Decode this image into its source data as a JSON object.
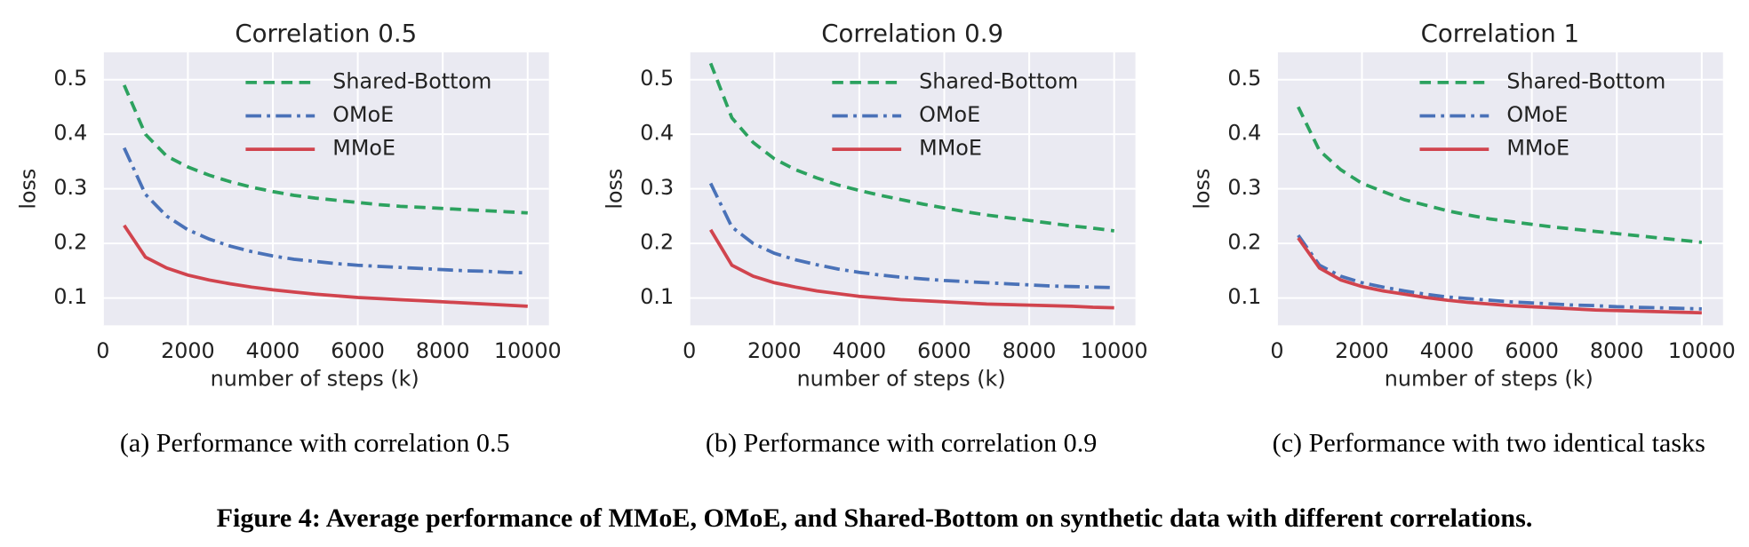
{
  "chart_data": [
    {
      "type": "line",
      "title": "Correlation 0.5",
      "x_label": "number of steps (k)",
      "y_label": "loss",
      "subcaption": "(a) Performance with correlation 0.5",
      "x": [
        500,
        1000,
        1500,
        2000,
        2500,
        3000,
        3500,
        4000,
        4500,
        5000,
        5500,
        6000,
        6500,
        7000,
        7500,
        8000,
        8500,
        9000,
        9500,
        10000
      ],
      "series": [
        {
          "name": "Shared-Bottom",
          "color": "#2ca25f",
          "linestyle": "dashed",
          "values": [
            0.49,
            0.4,
            0.36,
            0.34,
            0.325,
            0.313,
            0.303,
            0.295,
            0.288,
            0.283,
            0.279,
            0.275,
            0.271,
            0.268,
            0.266,
            0.264,
            0.262,
            0.26,
            0.258,
            0.256
          ]
        },
        {
          "name": "OMoE",
          "color": "#4a72b8",
          "linestyle": "dashdot",
          "values": [
            0.375,
            0.29,
            0.25,
            0.225,
            0.208,
            0.195,
            0.185,
            0.177,
            0.171,
            0.167,
            0.163,
            0.16,
            0.158,
            0.156,
            0.154,
            0.152,
            0.15,
            0.149,
            0.147,
            0.146
          ]
        },
        {
          "name": "MMoE",
          "color": "#d1444e",
          "linestyle": "solid",
          "values": [
            0.233,
            0.175,
            0.155,
            0.142,
            0.133,
            0.126,
            0.12,
            0.115,
            0.111,
            0.107,
            0.104,
            0.101,
            0.099,
            0.097,
            0.095,
            0.093,
            0.091,
            0.089,
            0.087,
            0.085
          ]
        }
      ],
      "xlim": [
        0,
        10500
      ],
      "ylim": [
        0.05,
        0.55
      ],
      "xticks": [
        0,
        2000,
        4000,
        6000,
        8000,
        10000
      ],
      "yticks": [
        0.1,
        0.2,
        0.3,
        0.4,
        0.5
      ],
      "grid": true,
      "legend": "top"
    },
    {
      "type": "line",
      "title": "Correlation 0.9",
      "x_label": "number of steps (k)",
      "y_label": "loss",
      "subcaption": "(b) Performance with correlation 0.9",
      "x": [
        500,
        1000,
        1500,
        2000,
        2500,
        3000,
        3500,
        4000,
        4500,
        5000,
        5500,
        6000,
        6500,
        7000,
        7500,
        8000,
        8500,
        9000,
        9500,
        10000
      ],
      "series": [
        {
          "name": "Shared-Bottom",
          "color": "#2ca25f",
          "linestyle": "dashed",
          "values": [
            0.53,
            0.43,
            0.385,
            0.355,
            0.335,
            0.32,
            0.307,
            0.297,
            0.288,
            0.28,
            0.272,
            0.265,
            0.258,
            0.252,
            0.247,
            0.242,
            0.237,
            0.232,
            0.228,
            0.223
          ]
        },
        {
          "name": "OMoE",
          "color": "#4a72b8",
          "linestyle": "dashdot",
          "values": [
            0.31,
            0.23,
            0.2,
            0.182,
            0.17,
            0.161,
            0.153,
            0.147,
            0.142,
            0.138,
            0.135,
            0.132,
            0.13,
            0.128,
            0.126,
            0.124,
            0.122,
            0.121,
            0.12,
            0.119
          ]
        },
        {
          "name": "MMoE",
          "color": "#d1444e",
          "linestyle": "solid",
          "values": [
            0.225,
            0.16,
            0.14,
            0.128,
            0.12,
            0.113,
            0.108,
            0.103,
            0.1,
            0.097,
            0.095,
            0.093,
            0.091,
            0.089,
            0.088,
            0.087,
            0.086,
            0.085,
            0.083,
            0.082
          ]
        }
      ],
      "xlim": [
        0,
        10500
      ],
      "ylim": [
        0.05,
        0.55
      ],
      "xticks": [
        0,
        2000,
        4000,
        6000,
        8000,
        10000
      ],
      "yticks": [
        0.1,
        0.2,
        0.3,
        0.4,
        0.5
      ],
      "grid": true,
      "legend": "top"
    },
    {
      "type": "line",
      "title": "Correlation 1",
      "x_label": "number of steps (k)",
      "y_label": "loss",
      "subcaption": "(c) Performance with two identical tasks",
      "x": [
        500,
        1000,
        1500,
        2000,
        2500,
        3000,
        3500,
        4000,
        4500,
        5000,
        5500,
        6000,
        6500,
        7000,
        7500,
        8000,
        8500,
        9000,
        9500,
        10000
      ],
      "series": [
        {
          "name": "Shared-Bottom",
          "color": "#2ca25f",
          "linestyle": "dashed",
          "values": [
            0.45,
            0.37,
            0.335,
            0.31,
            0.295,
            0.28,
            0.27,
            0.26,
            0.252,
            0.245,
            0.24,
            0.235,
            0.23,
            0.226,
            0.222,
            0.218,
            0.214,
            0.21,
            0.206,
            0.202
          ]
        },
        {
          "name": "OMoE",
          "color": "#4a72b8",
          "linestyle": "dashdot",
          "values": [
            0.215,
            0.16,
            0.14,
            0.128,
            0.12,
            0.113,
            0.107,
            0.102,
            0.099,
            0.096,
            0.093,
            0.091,
            0.089,
            0.087,
            0.086,
            0.084,
            0.083,
            0.082,
            0.081,
            0.08
          ]
        },
        {
          "name": "MMoE",
          "color": "#d1444e",
          "linestyle": "solid",
          "values": [
            0.21,
            0.155,
            0.133,
            0.121,
            0.113,
            0.107,
            0.101,
            0.096,
            0.092,
            0.089,
            0.086,
            0.084,
            0.082,
            0.08,
            0.078,
            0.077,
            0.076,
            0.075,
            0.074,
            0.073
          ]
        }
      ],
      "xlim": [
        0,
        10500
      ],
      "ylim": [
        0.05,
        0.55
      ],
      "xticks": [
        0,
        2000,
        4000,
        6000,
        8000,
        10000
      ],
      "yticks": [
        0.1,
        0.2,
        0.3,
        0.4,
        0.5
      ],
      "grid": true,
      "legend": "top"
    }
  ],
  "figure_caption": "Figure 4: Average performance of MMoE, OMoE, and Shared-Bottom on synthetic data with different correlations."
}
